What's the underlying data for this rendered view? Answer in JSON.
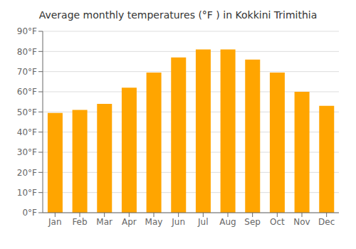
{
  "chart_data": {
    "type": "bar",
    "title": "Average monthly temperatures (°F ) in Kokkini Trimithia",
    "categories": [
      "Jan",
      "Feb",
      "Mar",
      "Apr",
      "May",
      "Jun",
      "Jul",
      "Aug",
      "Sep",
      "Oct",
      "Nov",
      "Dec"
    ],
    "values": [
      49.5,
      51.0,
      54.0,
      62.0,
      69.5,
      77.0,
      81.0,
      81.0,
      76.0,
      69.5,
      60.0,
      53.0
    ],
    "color": "#FFA500",
    "ylim": [
      0,
      90
    ],
    "yticks": [
      {
        "value": 0,
        "label": "0°F"
      },
      {
        "value": 10,
        "label": "10°F"
      },
      {
        "value": 20,
        "label": "20°F"
      },
      {
        "value": 30,
        "label": "30°F"
      },
      {
        "value": 40,
        "label": "40°F"
      },
      {
        "value": 50,
        "label": "50°F"
      },
      {
        "value": 60,
        "label": "60°F"
      },
      {
        "value": 70,
        "label": "70°F"
      },
      {
        "value": 80,
        "label": "80°F"
      },
      {
        "value": 90,
        "label": "90°F"
      }
    ],
    "grid": true
  }
}
